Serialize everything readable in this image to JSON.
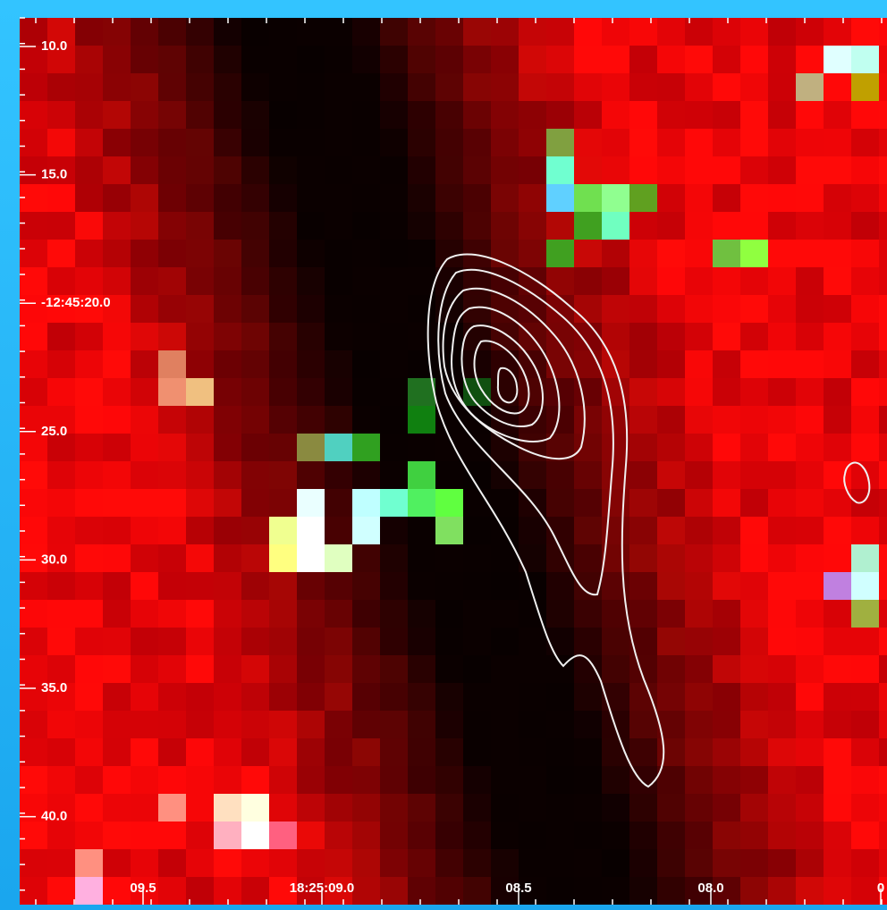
{
  "y_labels": [
    "10.0",
    "15.0",
    "-12:45:20.0",
    "25.0",
    "30.0",
    "35.0",
    "40.0"
  ],
  "x_labels": [
    "09.5",
    "18:25:09.0",
    "08.5",
    "08.0",
    "0"
  ]
}
